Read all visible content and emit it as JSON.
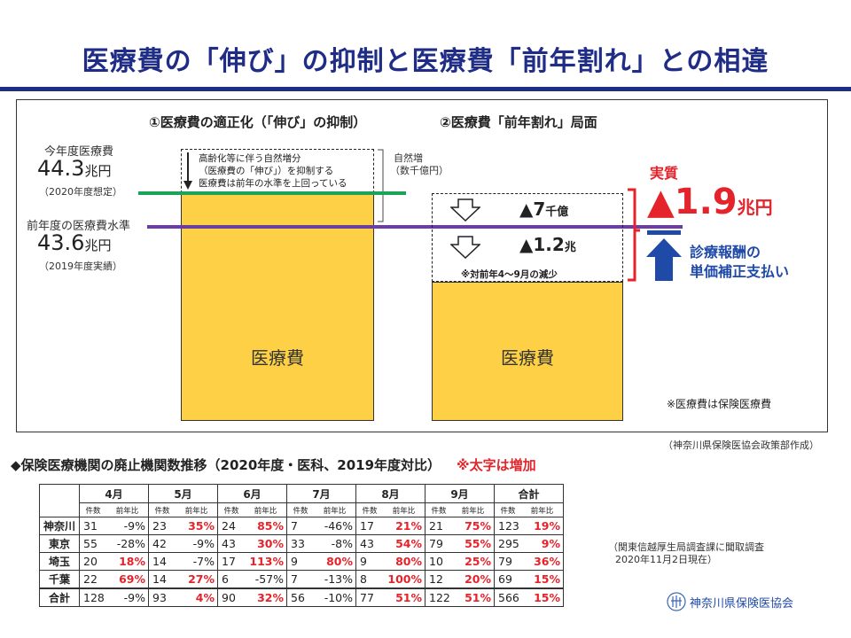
{
  "title": "医療費の「伸び」の抑制と医療費「前年割れ」との相違",
  "diagram": {
    "header_left": "①医療費の適正化（「伸び」の抑制）",
    "header_right": "②医療費「前年割れ」局面",
    "current_year_label": "今年度医療費",
    "current_year_value": "44.3",
    "current_year_unit": "兆円",
    "current_year_note": "（2020年度想定）",
    "prev_year_label": "前年度の医療費水準",
    "prev_year_value": "43.6",
    "prev_year_unit": "兆円",
    "prev_year_note": "（2019年度実績）",
    "natural_increase_text": [
      "高齢化等に伴う自然増分",
      "（医療費の「伸び」）を抑制する",
      "医療費は前年の水準を上回っている"
    ],
    "natural_increase_label": "自然増",
    "natural_increase_unit": "（数千億円）",
    "bar_left_label": "医療費",
    "bar_right_label": "医療費",
    "decrease_1": "▲7",
    "decrease_1_unit": "千億",
    "decrease_2": "▲1.2",
    "decrease_2_unit": "兆",
    "decrease_note": "※対前年4～9月の減少",
    "actual_label": "実質",
    "actual_value": "▲1.9",
    "actual_unit": "兆円",
    "payment_line1": "診療報酬の",
    "payment_line2": "単価補正支払い",
    "footnote": "※医療費は保険医療費",
    "source": "（神奈川県保険医協会政策部作成）",
    "colors": {
      "bar": "#fdd045",
      "green_line": "#1ca35a",
      "purple_line": "#6a3fa0",
      "red": "#e5232a",
      "blue": "#1f4aa8",
      "title": "#1f2d86"
    }
  },
  "table": {
    "title": "◆保険医療機関の廃止機関数推移（2020年度・医科、2019年度対比）",
    "title_note": "※太字は増加",
    "months": [
      "4月",
      "5月",
      "6月",
      "7月",
      "8月",
      "9月",
      "合計"
    ],
    "sub_count": "件数",
    "sub_ratio": "前年比",
    "rows": [
      {
        "pref": "神奈川",
        "cells": [
          [
            "31",
            "-9%",
            false
          ],
          [
            "23",
            "35%",
            true
          ],
          [
            "24",
            "85%",
            true
          ],
          [
            "7",
            "-46%",
            false
          ],
          [
            "17",
            "21%",
            true
          ],
          [
            "21",
            "75%",
            true
          ],
          [
            "123",
            "19%",
            true
          ]
        ]
      },
      {
        "pref": "東京",
        "cells": [
          [
            "55",
            "-28%",
            false
          ],
          [
            "42",
            "-9%",
            false
          ],
          [
            "43",
            "30%",
            true
          ],
          [
            "33",
            "-8%",
            false
          ],
          [
            "43",
            "54%",
            true
          ],
          [
            "79",
            "55%",
            true
          ],
          [
            "295",
            "9%",
            true
          ]
        ]
      },
      {
        "pref": "埼玉",
        "cells": [
          [
            "20",
            "18%",
            true
          ],
          [
            "14",
            "-7%",
            false
          ],
          [
            "17",
            "113%",
            true
          ],
          [
            "9",
            "80%",
            true
          ],
          [
            "9",
            "80%",
            true
          ],
          [
            "10",
            "25%",
            true
          ],
          [
            "79",
            "36%",
            true
          ]
        ]
      },
      {
        "pref": "千葉",
        "cells": [
          [
            "22",
            "69%",
            true
          ],
          [
            "14",
            "27%",
            true
          ],
          [
            "6",
            "-57%",
            false
          ],
          [
            "7",
            "-13%",
            false
          ],
          [
            "8",
            "100%",
            true
          ],
          [
            "12",
            "20%",
            true
          ],
          [
            "69",
            "15%",
            true
          ]
        ]
      },
      {
        "pref": "合計",
        "cells": [
          [
            "128",
            "-9%",
            false
          ],
          [
            "93",
            "4%",
            true
          ],
          [
            "90",
            "32%",
            true
          ],
          [
            "56",
            "-10%",
            false
          ],
          [
            "77",
            "51%",
            true
          ],
          [
            "122",
            "51%",
            true
          ],
          [
            "566",
            "15%",
            true
          ]
        ]
      }
    ],
    "source_line1": "（関東信越厚生局調査課に聞取調査",
    "source_line2": "2020年11月2日現在）"
  },
  "org_name": "神奈川県保険医協会"
}
